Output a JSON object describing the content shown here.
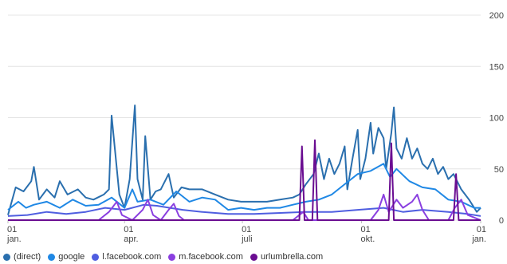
{
  "chart_data": {
    "type": "line",
    "title": "",
    "xlabel": "",
    "ylabel": "",
    "ylim": [
      0,
      200
    ],
    "yticks": [
      0,
      50,
      100,
      150,
      200
    ],
    "grid": true,
    "legend_position": "bottom",
    "x_ticks": [
      {
        "top": "01",
        "bottom": "jan.",
        "day": 0
      },
      {
        "top": "01",
        "bottom": "apr.",
        "day": 90
      },
      {
        "top": "01",
        "bottom": "juli",
        "day": 181
      },
      {
        "top": "01",
        "bottom": "okt.",
        "day": 273
      },
      {
        "top": "01",
        "bottom": "jan.",
        "day": 365
      }
    ],
    "series": [
      {
        "name": "(direct)",
        "color": "#2a6fae",
        "points": [
          [
            0,
            5
          ],
          [
            6,
            32
          ],
          [
            12,
            28
          ],
          [
            18,
            38
          ],
          [
            20,
            52
          ],
          [
            24,
            20
          ],
          [
            30,
            30
          ],
          [
            36,
            22
          ],
          [
            40,
            38
          ],
          [
            46,
            25
          ],
          [
            54,
            30
          ],
          [
            60,
            22
          ],
          [
            66,
            20
          ],
          [
            74,
            25
          ],
          [
            78,
            30
          ],
          [
            80,
            102
          ],
          [
            86,
            25
          ],
          [
            90,
            12
          ],
          [
            94,
            40
          ],
          [
            98,
            112
          ],
          [
            100,
            40
          ],
          [
            104,
            20
          ],
          [
            106,
            82
          ],
          [
            110,
            20
          ],
          [
            114,
            28
          ],
          [
            118,
            30
          ],
          [
            124,
            45
          ],
          [
            128,
            22
          ],
          [
            134,
            32
          ],
          [
            140,
            30
          ],
          [
            150,
            30
          ],
          [
            160,
            25
          ],
          [
            170,
            20
          ],
          [
            180,
            18
          ],
          [
            190,
            18
          ],
          [
            200,
            18
          ],
          [
            210,
            20
          ],
          [
            220,
            22
          ],
          [
            225,
            25
          ],
          [
            230,
            35
          ],
          [
            236,
            45
          ],
          [
            240,
            65
          ],
          [
            244,
            40
          ],
          [
            248,
            60
          ],
          [
            252,
            45
          ],
          [
            256,
            55
          ],
          [
            260,
            72
          ],
          [
            262,
            30
          ],
          [
            266,
            60
          ],
          [
            270,
            88
          ],
          [
            272,
            40
          ],
          [
            276,
            60
          ],
          [
            280,
            95
          ],
          [
            282,
            65
          ],
          [
            286,
            90
          ],
          [
            290,
            80
          ],
          [
            292,
            50
          ],
          [
            296,
            85
          ],
          [
            298,
            110
          ],
          [
            300,
            70
          ],
          [
            304,
            60
          ],
          [
            308,
            80
          ],
          [
            312,
            60
          ],
          [
            316,
            70
          ],
          [
            320,
            55
          ],
          [
            324,
            50
          ],
          [
            328,
            60
          ],
          [
            332,
            45
          ],
          [
            336,
            52
          ],
          [
            340,
            40
          ],
          [
            344,
            45
          ],
          [
            350,
            30
          ],
          [
            356,
            20
          ],
          [
            362,
            8
          ],
          [
            365,
            12
          ]
        ]
      },
      {
        "name": "google",
        "color": "#1f88e5",
        "points": [
          [
            0,
            10
          ],
          [
            8,
            18
          ],
          [
            14,
            12
          ],
          [
            20,
            15
          ],
          [
            30,
            18
          ],
          [
            40,
            12
          ],
          [
            50,
            20
          ],
          [
            60,
            14
          ],
          [
            70,
            15
          ],
          [
            80,
            22
          ],
          [
            90,
            12
          ],
          [
            96,
            30
          ],
          [
            100,
            18
          ],
          [
            110,
            20
          ],
          [
            120,
            15
          ],
          [
            130,
            28
          ],
          [
            140,
            18
          ],
          [
            150,
            22
          ],
          [
            160,
            20
          ],
          [
            170,
            10
          ],
          [
            180,
            12
          ],
          [
            190,
            10
          ],
          [
            200,
            12
          ],
          [
            210,
            12
          ],
          [
            220,
            15
          ],
          [
            230,
            18
          ],
          [
            240,
            20
          ],
          [
            250,
            25
          ],
          [
            260,
            35
          ],
          [
            270,
            45
          ],
          [
            280,
            48
          ],
          [
            290,
            55
          ],
          [
            295,
            42
          ],
          [
            300,
            50
          ],
          [
            310,
            38
          ],
          [
            320,
            32
          ],
          [
            330,
            30
          ],
          [
            340,
            20
          ],
          [
            350,
            18
          ],
          [
            360,
            12
          ],
          [
            365,
            12
          ]
        ]
      },
      {
        "name": "l.facebook.com",
        "color": "#4f5ee0",
        "points": [
          [
            0,
            4
          ],
          [
            15,
            5
          ],
          [
            30,
            8
          ],
          [
            45,
            6
          ],
          [
            60,
            8
          ],
          [
            75,
            12
          ],
          [
            90,
            10
          ],
          [
            105,
            15
          ],
          [
            115,
            14
          ],
          [
            125,
            12
          ],
          [
            135,
            10
          ],
          [
            150,
            8
          ],
          [
            170,
            6
          ],
          [
            190,
            6
          ],
          [
            210,
            7
          ],
          [
            230,
            8
          ],
          [
            250,
            8
          ],
          [
            270,
            10
          ],
          [
            290,
            12
          ],
          [
            305,
            8
          ],
          [
            320,
            10
          ],
          [
            340,
            8
          ],
          [
            355,
            6
          ],
          [
            365,
            4
          ]
        ]
      },
      {
        "name": "m.facebook.com",
        "color": "#8a3fe0",
        "points": [
          [
            0,
            0
          ],
          [
            70,
            0
          ],
          [
            78,
            8
          ],
          [
            84,
            18
          ],
          [
            88,
            5
          ],
          [
            96,
            0
          ],
          [
            104,
            10
          ],
          [
            108,
            20
          ],
          [
            112,
            5
          ],
          [
            118,
            0
          ],
          [
            124,
            10
          ],
          [
            128,
            16
          ],
          [
            132,
            4
          ],
          [
            136,
            0
          ],
          [
            150,
            0
          ],
          [
            160,
            0
          ],
          [
            180,
            0
          ],
          [
            200,
            0
          ],
          [
            220,
            0
          ],
          [
            228,
            8
          ],
          [
            232,
            0
          ],
          [
            250,
            0
          ],
          [
            280,
            0
          ],
          [
            286,
            10
          ],
          [
            290,
            25
          ],
          [
            294,
            8
          ],
          [
            300,
            20
          ],
          [
            305,
            12
          ],
          [
            312,
            18
          ],
          [
            316,
            25
          ],
          [
            320,
            10
          ],
          [
            325,
            0
          ],
          [
            340,
            0
          ],
          [
            345,
            12
          ],
          [
            350,
            20
          ],
          [
            355,
            5
          ],
          [
            365,
            0
          ]
        ]
      },
      {
        "name": "urlumbrella.com",
        "color": "#6a0d91",
        "points": [
          [
            0,
            0
          ],
          [
            225,
            0
          ],
          [
            227,
            72
          ],
          [
            229,
            0
          ],
          [
            235,
            0
          ],
          [
            237,
            78
          ],
          [
            239,
            0
          ],
          [
            294,
            0
          ],
          [
            296,
            75
          ],
          [
            298,
            0
          ],
          [
            344,
            0
          ],
          [
            346,
            45
          ],
          [
            348,
            0
          ],
          [
            365,
            0
          ]
        ]
      }
    ]
  }
}
